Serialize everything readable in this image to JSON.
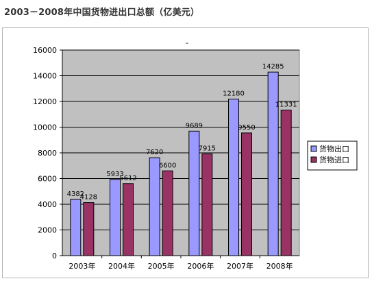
{
  "page": {
    "title": "2003－2008年中国货物进出口总额（亿美元）"
  },
  "chart_data": {
    "type": "bar",
    "title": "-",
    "categories": [
      "2003年",
      "2004年",
      "2005年",
      "2006年",
      "2007年",
      "2008年"
    ],
    "series": [
      {
        "name": "货物出口",
        "values": [
          4382,
          5933,
          7620,
          9689,
          12180,
          14285
        ],
        "color": "#9999ff"
      },
      {
        "name": "货物进口",
        "values": [
          4128,
          5612,
          6600,
          7915,
          9550,
          11331
        ],
        "color": "#993366"
      }
    ],
    "ylim": [
      0,
      16000
    ],
    "yticks": [
      0,
      2000,
      4000,
      6000,
      8000,
      10000,
      12000,
      14000,
      16000
    ],
    "xlabel": "",
    "ylabel": "",
    "grid": true,
    "plot_background": "#c0c0c0",
    "legend_position": "right"
  }
}
